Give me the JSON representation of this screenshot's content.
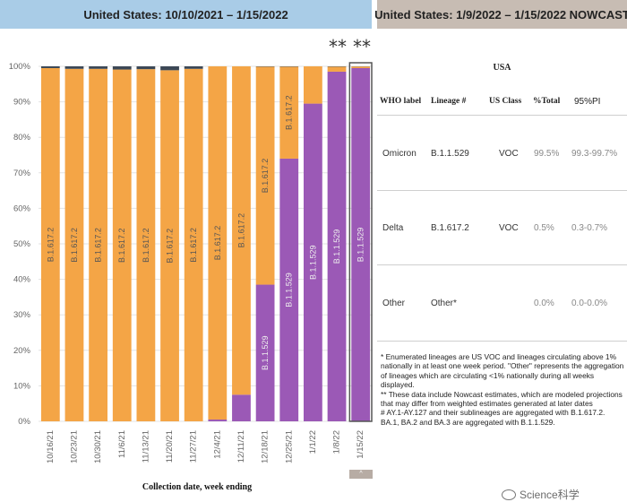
{
  "header": {
    "left_title": "United States: 10/10/2021 – 1/15/2022",
    "right_title": "United States: 1/9/2022 – 1/15/2022 NOWCAST"
  },
  "stars": [
    "**",
    "**"
  ],
  "colors": {
    "delta": "#f4a546",
    "omicron": "#9b59b6",
    "other": "#3c4856",
    "grid": "#e3e3e3"
  },
  "chart_data": {
    "type": "bar",
    "stacked": true,
    "xlabel": "Collection date, week ending",
    "ylabel": "",
    "ylim": [
      0,
      100
    ],
    "yticks": [
      "0%",
      "10%",
      "20%",
      "30%",
      "40%",
      "50%",
      "60%",
      "70%",
      "80%",
      "90%",
      "100%"
    ],
    "categories": [
      "10/16/21",
      "10/23/21",
      "10/30/21",
      "11/6/21",
      "11/13/21",
      "11/20/21",
      "11/27/21",
      "12/4/21",
      "12/11/21",
      "12/18/21",
      "12/25/21",
      "1/1/22",
      "1/8/22",
      "1/15/22"
    ],
    "series": [
      {
        "name": "B.1.1.529",
        "color": "#9b59b6",
        "values": [
          0,
          0,
          0,
          0,
          0,
          0,
          0,
          0.5,
          7.5,
          38.5,
          74,
          89.5,
          98.5,
          99.5
        ]
      },
      {
        "name": "B.1.617.2",
        "color": "#f4a546",
        "values": [
          99.5,
          99.3,
          99.3,
          99.1,
          99.2,
          98.9,
          99.3,
          99.5,
          92.5,
          61.4,
          25.9,
          10.5,
          1.4,
          0.45
        ]
      },
      {
        "name": "Other",
        "color": "#3c4856",
        "values": [
          0.5,
          0.7,
          0.7,
          0.9,
          0.8,
          1.1,
          0.7,
          0,
          0,
          0.1,
          0.1,
          0,
          0.1,
          0.05
        ]
      }
    ],
    "bar_labels": {
      "B.1.617.2": [
        "B.1.617.2",
        "B.1.617.2",
        "B.1.617.2",
        "B.1.617.2",
        "B.1.617.2",
        "B.1.617.2",
        "B.1.617.2",
        "B.1.617.2",
        "B.1.617.2",
        "B.1.617.2",
        "B.1.617.2",
        "",
        "",
        ""
      ],
      "B.1.1.529": [
        "",
        "",
        "",
        "",
        "",
        "",
        "",
        "",
        "",
        "B.1.1.529",
        "B.1.1.529",
        "B.1.1.529",
        "B.1.1.529",
        "B.1.1.529"
      ]
    }
  },
  "scroll_tab": "^",
  "nowcast_table": {
    "title": "USA",
    "headers": [
      "WHO label",
      "Lineage #",
      "US Class",
      "%Total",
      "95%PI"
    ],
    "rows": [
      {
        "who": "Omicron",
        "lineage": "B.1.1.529",
        "class": "VOC",
        "pct": "99.5%",
        "pi": "99.3-99.7%"
      },
      {
        "who": "Delta",
        "lineage": "B.1.617.2",
        "class": "VOC",
        "pct": "0.5%",
        "pi": "0.3-0.7%"
      },
      {
        "who": "Other",
        "lineage": "Other*",
        "class": "",
        "pct": "0.0%",
        "pi": "0.0-0.0%"
      }
    ]
  },
  "notes": [
    "*      Enumerated lineages are US VOC and lineages circulating above 1% nationally in at least one week period. \"Other\" represents the aggregation of lineages which are circulating <1% nationally during all weeks displayed.",
    "**    These data include Nowcast estimates, which are modeled projections that may differ from weighted estimates generated at later dates",
    "#      AY.1-AY.127 and their sublineages are aggregated with B.1.617.2. BA.1, BA.2 and BA.3 are aggregated with B.1.1.529."
  ],
  "watermark": "Science科学"
}
